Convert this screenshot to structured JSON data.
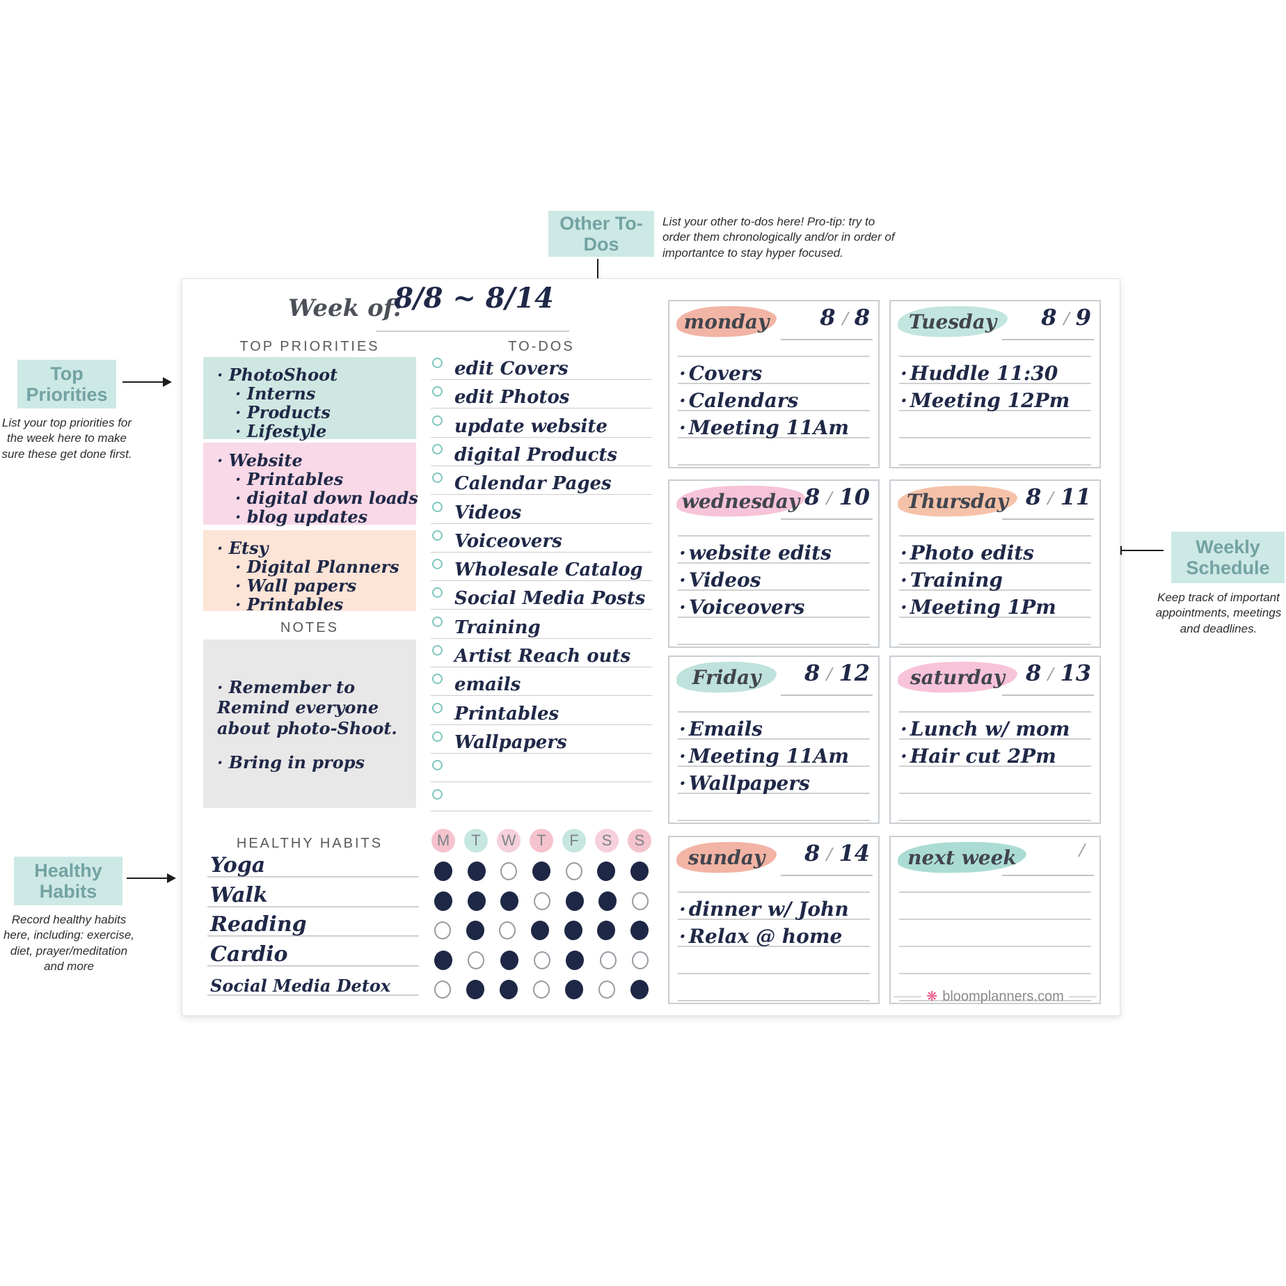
{
  "callouts": {
    "other_todos": {
      "title": "Other To-Dos",
      "description": "List your other to-dos here! Pro-tip: try to order them chronologically and/or in order of importantce to stay hyper focused."
    },
    "top_priorities": {
      "title": "Top Priorities",
      "description": "List your top priorities for the week here to make sure these get done first."
    },
    "weekly_schedule": {
      "title": "Weekly Schedule",
      "description": "Keep track of important appointments, meetings and deadlines."
    },
    "healthy_habits": {
      "title": "Healthy Habits",
      "description": "Record healthy habits here, including: exercise, diet, prayer/meditation and more"
    }
  },
  "planner": {
    "week_of": {
      "label": "Week of:",
      "value": "8/8 ~ 8/14"
    },
    "date_separator": "/",
    "top_priorities": {
      "label": "TOP PRIORITIES",
      "groups": [
        {
          "color": "#cfe7e2",
          "items": [
            "PhotoShoot",
            "Interns",
            "Products",
            "Lifestyle"
          ]
        },
        {
          "color": "#f9d9e7",
          "items": [
            "Website",
            "Printables",
            "digital down loads",
            "blog updates"
          ]
        },
        {
          "color": "#fce4d6",
          "items": [
            "Etsy",
            "Digital Planners",
            "Wall papers",
            "Printables"
          ]
        }
      ]
    },
    "notes": {
      "label": "NOTES",
      "items": [
        "Remember to Remind everyone about photo-Shoot.",
        "Bring in props"
      ]
    },
    "todos": {
      "label": "TO-DOS",
      "items": [
        "edit Covers",
        "edit Photos",
        "update website",
        "digital Products",
        "Calendar Pages",
        "Videos",
        "Voiceovers",
        "Wholesale Catalog",
        "Social Media Posts",
        "Training",
        "Artist Reach outs",
        "emails",
        "Printables",
        "Wallpapers",
        "",
        ""
      ]
    },
    "healthy_habits": {
      "label": "HEALTHY HABITS",
      "day_headers": [
        {
          "letter": "M",
          "color": "#f5c3cd"
        },
        {
          "letter": "T",
          "color": "#c6e6e0"
        },
        {
          "letter": "W",
          "color": "#f6d0da"
        },
        {
          "letter": "T",
          "color": "#f5c3cd"
        },
        {
          "letter": "F",
          "color": "#c6e6e0"
        },
        {
          "letter": "S",
          "color": "#f6d0da"
        },
        {
          "letter": "S",
          "color": "#f5c3cd"
        }
      ],
      "habits": [
        {
          "name": "Yoga",
          "checks": [
            1,
            1,
            0,
            1,
            0,
            1,
            1
          ]
        },
        {
          "name": "Walk",
          "checks": [
            1,
            1,
            1,
            0,
            1,
            1,
            0
          ]
        },
        {
          "name": "Reading",
          "checks": [
            0,
            1,
            0,
            1,
            1,
            1,
            1
          ]
        },
        {
          "name": "Cardio",
          "checks": [
            1,
            0,
            1,
            0,
            1,
            0,
            0
          ]
        },
        {
          "name": "Social Media Detox",
          "checks": [
            0,
            1,
            1,
            0,
            1,
            0,
            1
          ]
        }
      ]
    },
    "days": [
      {
        "name": "monday",
        "date_left": "8",
        "date_right": "8",
        "highlight": "#f2b4a4",
        "entries": [
          "Covers",
          "Calendars",
          "Meeting 11Am"
        ]
      },
      {
        "name": "Tuesday",
        "date_left": "8",
        "date_right": "9",
        "highlight": "#c2e5df",
        "entries": [
          "Huddle 11:30",
          "Meeting 12Pm"
        ]
      },
      {
        "name": "wednesday",
        "date_left": "8",
        "date_right": "10",
        "highlight": "#f6c3d8",
        "entries": [
          "website edits",
          "Videos",
          "Voiceovers"
        ]
      },
      {
        "name": "Thursday",
        "date_left": "8",
        "date_right": "11",
        "highlight": "#f5c2a9",
        "entries": [
          "Photo edits",
          "Training",
          "Meeting 1Pm"
        ]
      },
      {
        "name": "Friday",
        "date_left": "8",
        "date_right": "12",
        "highlight": "#bfe2dc",
        "entries": [
          "Emails",
          "Meeting 11Am",
          "Wallpapers"
        ]
      },
      {
        "name": "saturday",
        "date_left": "8",
        "date_right": "13",
        "highlight": "#f7c3d9",
        "entries": [
          "Lunch w/ mom",
          "Hair cut 2Pm"
        ]
      },
      {
        "name": "sunday",
        "date_left": "8",
        "date_right": "14",
        "highlight": "#f2b4a4",
        "entries": [
          "dinner w/ John",
          "Relax @ home"
        ]
      },
      {
        "name": "next week",
        "date_left": "",
        "date_right": "",
        "highlight": "#abdcd4",
        "entries": []
      }
    ],
    "footer": {
      "brand": "bloomplanners.com",
      "flower_icon": "❋",
      "flower_color": "#e0527f"
    }
  }
}
